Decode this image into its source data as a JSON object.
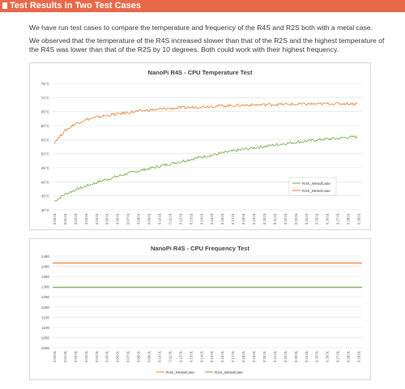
{
  "header": {
    "title": "Test Results in Two Test Cases"
  },
  "paragraphs": [
    "We have run test cases to compare the temperature and frequency of the R4S and R2S both with a metal case.",
    "We observed that the temperature of the R4S increased slower than that of the R2S and the highest temperature of the R4S was lower than that of the R2S by 10 degrees. Both could work with their highest frequency."
  ],
  "colors": {
    "header": "#e8694a",
    "r4s": "#70ad47",
    "r2s": "#ed7d31"
  },
  "chart_data": [
    {
      "type": "line",
      "title": "NanoPi R4S - CPU Temperature Test",
      "xlabel": "",
      "ylabel": "",
      "ylim": [
        30,
        75
      ],
      "y_ticks": [
        "75°C",
        "70°C",
        "65°C",
        "60°C",
        "55°C",
        "50°C",
        "45°C",
        "40°C",
        "35°C",
        "30°C"
      ],
      "x_ticks": [
        "0:00:01",
        "0:01:01",
        "0:02:01",
        "0:03:01",
        "0:04:01",
        "0:05:01",
        "0:06:01",
        "0:07:01",
        "0:08:01",
        "0:09:01",
        "0:10:01",
        "0:11:01",
        "0:12:01",
        "0:13:01",
        "0:14:01",
        "0:15:01",
        "0:16:01",
        "0:17:01",
        "0:18:01",
        "0:19:01",
        "0:20:01",
        "0:21:01",
        "0:22:01",
        "0:23:01",
        "0:24:01",
        "0:25:01",
        "0:26:01",
        "0:27:01",
        "0:28:01",
        "0:29:01"
      ],
      "x_minutes": [
        0,
        1,
        2,
        3,
        4,
        5,
        6,
        7,
        8,
        9,
        10,
        11,
        12,
        13,
        14,
        15,
        16,
        17,
        18,
        19,
        20,
        21,
        22,
        23,
        24,
        25,
        26,
        27,
        28,
        29,
        30
      ],
      "legend": "inside-right",
      "grid": true,
      "series": [
        {
          "name": "R4S_MetalCase",
          "values": [
            33,
            35.5,
            37,
            38.3,
            39.5,
            40.7,
            41.7,
            42.7,
            43.6,
            44.4,
            45.2,
            46,
            46.8,
            47.6,
            48.4,
            49.1,
            49.8,
            50.5,
            51.1,
            51.7,
            52.2,
            52.7,
            53.2,
            53.7,
            54.1,
            54.5,
            54.9,
            55.2,
            55.5,
            55.8,
            56
          ]
        },
        {
          "name": "R2S_MetalCase",
          "values": [
            54,
            58,
            60.5,
            62,
            62.8,
            63.5,
            64,
            64.5,
            65,
            65.4,
            65.7,
            66,
            66.2,
            66.4,
            66.6,
            66.8,
            67,
            67.1,
            67.2,
            67.3,
            67.4,
            67.5,
            67.5,
            67.6,
            67.6,
            67.7,
            67.7,
            67.8,
            67.8,
            67.8,
            67.8
          ]
        }
      ]
    },
    {
      "type": "line",
      "title": "NanoPi R4S - CPU Frequency Test",
      "xlabel": "",
      "ylabel": "",
      "ylim": [
        1000,
        1450
      ],
      "y_ticks": [
        "1450",
        "1400",
        "1350",
        "1300",
        "1250",
        "1200",
        "1150",
        "1100",
        "1050",
        "1000"
      ],
      "x_ticks": [
        "0:00:01",
        "0:01:01",
        "0:02:01",
        "0:03:01",
        "0:04:01",
        "0:05:01",
        "0:06:01",
        "0:07:01",
        "0:08:01",
        "0:09:01",
        "0:10:01",
        "0:11:01",
        "0:12:01",
        "0:13:01",
        "0:14:01",
        "0:15:01",
        "0:16:01",
        "0:17:01",
        "0:18:01",
        "0:19:01",
        "0:20:01",
        "0:21:01",
        "0:22:01",
        "0:23:01",
        "0:24:01",
        "0:25:01",
        "0:26:01",
        "0:27:01",
        "0:28:01",
        "0:29:01"
      ],
      "legend": "bottom",
      "grid": true,
      "series": [
        {
          "name": "R4S_MetalCase",
          "value": 1416
        },
        {
          "name": "R2S_MetalCase",
          "value": 1296
        }
      ]
    }
  ]
}
